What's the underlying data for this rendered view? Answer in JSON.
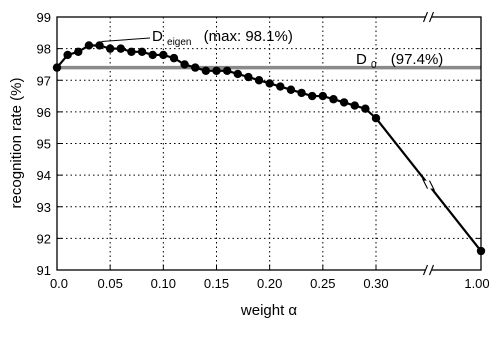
{
  "chart_data": {
    "type": "line",
    "title": "",
    "xlabel": "weight α",
    "ylabel": "recognition rate (%)",
    "ylim": [
      91,
      99
    ],
    "y_ticks": [
      "91",
      "92",
      "93",
      "94",
      "95",
      "96",
      "97",
      "98",
      "99"
    ],
    "x_ticks": [
      "0.0",
      "0.05",
      "0.10",
      "0.15",
      "0.20",
      "0.25",
      "0.30",
      "1.00"
    ],
    "x_axis_break_after": 0.3,
    "grid": true,
    "series": [
      {
        "x": [
          0.0,
          0.01,
          0.02,
          0.03,
          0.04,
          0.05,
          0.06,
          0.07,
          0.08,
          0.09,
          0.1,
          0.11,
          0.12,
          0.13,
          0.14,
          0.15,
          0.16,
          0.17,
          0.18,
          0.19,
          0.2,
          0.21,
          0.22,
          0.23,
          0.24,
          0.25,
          0.26,
          0.27,
          0.28,
          0.29,
          0.3,
          1.0
        ],
        "y": [
          97.4,
          97.8,
          97.9,
          98.1,
          98.1,
          98.0,
          98.0,
          97.9,
          97.9,
          97.8,
          97.8,
          97.7,
          97.5,
          97.4,
          97.3,
          97.3,
          97.3,
          97.2,
          97.1,
          97.0,
          96.9,
          96.8,
          96.7,
          96.6,
          96.5,
          96.5,
          96.4,
          96.3,
          96.2,
          96.1,
          95.8,
          91.6
        ]
      }
    ],
    "reference_line": {
      "y": 97.4,
      "label_main": "D",
      "label_sub": "0",
      "label_value": "(97.4%)"
    },
    "annotation": {
      "label_main": "D",
      "label_sub": "eigen",
      "label_value": "(max: 98.1%)",
      "x": 0.04,
      "y": 98.1
    }
  }
}
